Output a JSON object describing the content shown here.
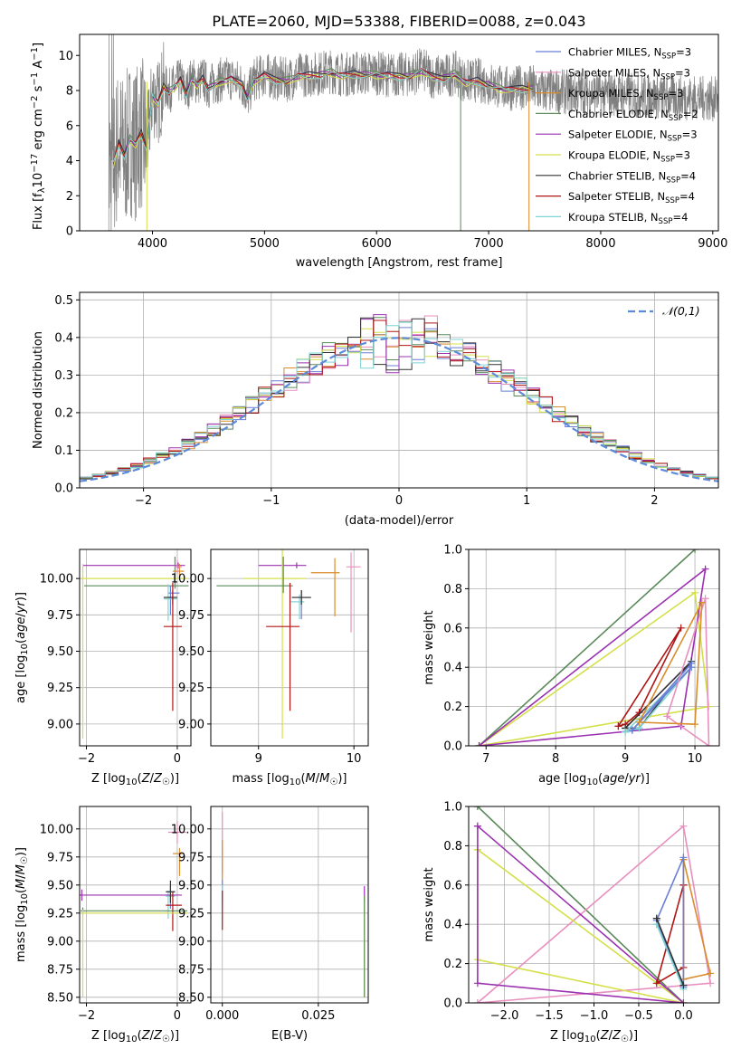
{
  "title": "PLATE=2060, MJD=53388, FIBERID=0088, z=0.043",
  "colors": {
    "chab_miles": "#6b7fd7",
    "salp_miles": "#e88fbf",
    "krou_miles": "#d98c2b",
    "chab_elodie": "#5a8a5a",
    "salp_elodie": "#9b30b0",
    "krou_elodie": "#d4e04a",
    "chab_stelib": "#333333",
    "salp_stelib": "#b01515",
    "krou_stelib": "#7fd4d4",
    "data": "#808080",
    "gauss": "#5b8bd9"
  },
  "chart_data": [
    {
      "id": "spectrum",
      "type": "line",
      "xlabel": "wavelength [Angstrom, rest frame]",
      "ylabel": "Flux [f_λ 10^-17 erg cm^-2 s^-1 A^-1]",
      "xlim": [
        3350,
        9050
      ],
      "ylim": [
        0,
        11.2
      ],
      "xticks": [
        4000,
        5000,
        6000,
        7000,
        8000,
        9000
      ],
      "yticks": [
        0,
        2,
        4,
        6,
        8,
        10
      ],
      "legend_placement": "right",
      "legend": [
        {
          "model": "Chabrier MILES",
          "nssp": "3",
          "color_key": "chab_miles"
        },
        {
          "model": "Salpeter MILES",
          "nssp": "3",
          "color_key": "salp_miles"
        },
        {
          "model": "Kroupa MILES",
          "nssp": "3",
          "color_key": "krou_miles"
        },
        {
          "model": "Chabrier ELODIE",
          "nssp": "2",
          "color_key": "chab_elodie"
        },
        {
          "model": "Salpeter ELODIE",
          "nssp": "3",
          "color_key": "salp_elodie"
        },
        {
          "model": "Kroupa ELODIE",
          "nssp": "3",
          "color_key": "krou_elodie"
        },
        {
          "model": "Chabrier STELIB",
          "nssp": "4",
          "color_key": "chab_stelib"
        },
        {
          "model": "Salpeter STELIB",
          "nssp": "4",
          "color_key": "salp_stelib"
        },
        {
          "model": "Kroupa STELIB",
          "nssp": "4",
          "color_key": "krou_stelib"
        }
      ],
      "model_x": [
        3650,
        3700,
        3750,
        3800,
        3850,
        3900,
        3950,
        4000,
        4050,
        4100,
        4150,
        4200,
        4250,
        4300,
        4350,
        4400,
        4450,
        4500,
        4600,
        4700,
        4800,
        4850,
        4900,
        5000,
        5100,
        5200,
        5300,
        5400,
        5500,
        5600,
        5700,
        5800,
        5900,
        6000,
        6100,
        6200,
        6300,
        6400,
        6500,
        6600,
        6700,
        6800,
        6900,
        7000,
        7100,
        7200,
        7300,
        7400
      ],
      "model_y": [
        3.9,
        5.0,
        4.4,
        5.3,
        5.0,
        5.6,
        4.8,
        7.8,
        7.3,
        8.3,
        8.0,
        8.3,
        8.6,
        7.9,
        8.7,
        8.4,
        8.7,
        8.2,
        8.6,
        8.7,
        8.4,
        7.6,
        8.6,
        8.9,
        8.7,
        8.6,
        8.9,
        8.9,
        9.0,
        9.1,
        8.9,
        9.0,
        9.0,
        9.0,
        8.9,
        8.9,
        8.9,
        9.2,
        8.8,
        8.8,
        9.0,
        8.5,
        8.6,
        8.4,
        8.2,
        8.1,
        8.2,
        8.2
      ],
      "data_note_ranges": {
        "lines_x": [
          3400,
          9050
        ]
      }
    },
    {
      "id": "residuals",
      "type": "histogram",
      "xlabel": "(data-model)/error",
      "ylabel": "Normed distribution",
      "xlim": [
        -2.5,
        2.5
      ],
      "ylim": [
        0,
        0.52
      ],
      "xticks": [
        -2,
        -1,
        0,
        1,
        2
      ],
      "yticks": [
        0.0,
        0.1,
        0.2,
        0.3,
        0.4,
        0.5
      ],
      "legend": "𝒩(0,1)",
      "legend_placement": "top-right",
      "grid": true,
      "bin_width": 0.1,
      "bin_start": -2.5
    },
    {
      "id": "age_vs_Z",
      "type": "errorbar",
      "xlabel": "Z [log10(Z/Z☉)]",
      "ylabel": "age [log10(age/yr)]",
      "xlim": [
        -2.15,
        0.3
      ],
      "ylim": [
        8.85,
        10.2
      ],
      "xticks": [
        -2,
        0
      ],
      "yticks": [
        9.0,
        9.25,
        9.5,
        9.75,
        10.0
      ],
      "points": [
        {
          "k": "salp_elodie",
          "x": 0.02,
          "xe": [
            2.1,
            0.15
          ],
          "y": 10.09,
          "ye": [
            0.02,
            0.02
          ]
        },
        {
          "k": "krou_elodie",
          "x": -2.08,
          "xe": [
            0.05,
            2.3
          ],
          "y": 10.0,
          "ye": [
            1.1,
            0.1
          ]
        },
        {
          "k": "chab_elodie",
          "x": -0.05,
          "xe": [
            2.0,
            0.3
          ],
          "y": 9.95,
          "ye": [
            0.02,
            0.2
          ]
        },
        {
          "k": "krou_miles",
          "x": 0.05,
          "xe": [
            0.15,
            0.1
          ],
          "y": 10.05,
          "ye": [
            0.05,
            0.05
          ]
        },
        {
          "k": "salp_miles",
          "x": 0.0,
          "xe": [
            0.05,
            0.1
          ],
          "y": 10.08,
          "ye": [
            0.05,
            0.05
          ]
        },
        {
          "k": "chab_miles",
          "x": -0.15,
          "xe": [
            0.05,
            0.2
          ],
          "y": 9.9,
          "ye": [
            0.15,
            0.05
          ]
        },
        {
          "k": "krou_stelib",
          "x": -0.2,
          "xe": [
            0.1,
            0.2
          ],
          "y": 9.86,
          "ye": [
            0.15,
            0.1
          ]
        },
        {
          "k": "chab_stelib",
          "x": -0.1,
          "xe": [
            0.2,
            0.1
          ],
          "y": 9.87,
          "ye": [
            0.05,
            0.05
          ]
        },
        {
          "k": "salp_stelib",
          "x": -0.1,
          "xe": [
            0.2,
            0.2
          ],
          "y": 9.67,
          "ye": [
            0.58,
            0.3
          ]
        }
      ]
    },
    {
      "id": "age_vs_mass",
      "type": "errorbar",
      "xlabel": "mass [log10(M/M☉)]",
      "ylabel": "",
      "xlim": [
        8.5,
        10.15
      ],
      "ylim": [
        8.85,
        10.2
      ],
      "xticks": [
        9,
        10
      ],
      "yticks": [
        9.0,
        9.25,
        9.5,
        9.75,
        10.0
      ],
      "points": [
        {
          "k": "salp_elodie",
          "x": 9.4,
          "xe": [
            0.4,
            0.1
          ],
          "y": 10.09,
          "ye": [
            0.02,
            0.02
          ]
        },
        {
          "k": "krou_elodie",
          "x": 9.25,
          "xe": [
            0.4,
            0.25
          ],
          "y": 10.0,
          "ye": [
            1.1,
            0.2
          ]
        },
        {
          "k": "chab_elodie",
          "x": 9.26,
          "xe": [
            0.7,
            0.1
          ],
          "y": 9.95,
          "ye": [
            0.05,
            0.2
          ]
        },
        {
          "k": "krou_miles",
          "x": 9.8,
          "xe": [
            0.25,
            0.05
          ],
          "y": 10.04,
          "ye": [
            0.3,
            0.1
          ]
        },
        {
          "k": "salp_miles",
          "x": 9.97,
          "xe": [
            0.05,
            0.1
          ],
          "y": 10.08,
          "ye": [
            0.45,
            0.1
          ]
        },
        {
          "k": "chab_miles",
          "x": 9.45,
          "xe": [
            0.1,
            0.1
          ],
          "y": 9.87,
          "ye": [
            0.15,
            0.05
          ]
        },
        {
          "k": "krou_stelib",
          "x": 9.43,
          "xe": [
            0.1,
            0.05
          ],
          "y": 9.84,
          "ye": [
            0.12,
            0.05
          ]
        },
        {
          "k": "chab_stelib",
          "x": 9.45,
          "xe": [
            0.1,
            0.1
          ],
          "y": 9.87,
          "ye": [
            0.05,
            0.05
          ]
        },
        {
          "k": "salp_stelib",
          "x": 9.33,
          "xe": [
            0.25,
            0.1
          ],
          "y": 9.67,
          "ye": [
            0.58,
            0.3
          ]
        }
      ]
    },
    {
      "id": "massw_vs_age",
      "type": "line",
      "xlabel": "age [log10(age/yr)]",
      "ylabel": "mass weight",
      "xlim": [
        6.75,
        10.35
      ],
      "ylim": [
        0,
        1.0
      ],
      "xticks": [
        7,
        8,
        9,
        10
      ],
      "yticks": [
        0.0,
        0.2,
        0.4,
        0.6,
        0.8,
        1.0
      ],
      "grid": true,
      "series": [
        {
          "k": "chab_elodie",
          "x": [
            6.9,
            10.0,
            6.9
          ],
          "y": [
            0.0,
            1.0,
            0.0
          ]
        },
        {
          "k": "krou_elodie",
          "x": [
            6.9,
            10.0,
            10.2,
            6.9
          ],
          "y": [
            0.0,
            0.78,
            0.2,
            0.0
          ]
        },
        {
          "k": "salp_elodie",
          "x": [
            6.9,
            9.8,
            10.15,
            6.9
          ],
          "y": [
            0.0,
            0.1,
            0.9,
            0.0
          ]
        },
        {
          "k": "salp_stelib",
          "x": [
            8.9,
            9.0,
            9.2,
            9.8,
            8.9
          ],
          "y": [
            0.1,
            0.11,
            0.17,
            0.6,
            0.1
          ]
        },
        {
          "k": "chab_stelib",
          "x": [
            9.0,
            9.2,
            9.95,
            9.0
          ],
          "y": [
            0.09,
            0.09,
            0.43,
            0.09
          ]
        },
        {
          "k": "krou_stelib",
          "x": [
            9.0,
            9.2,
            9.95,
            9.0
          ],
          "y": [
            0.07,
            0.09,
            0.4,
            0.07
          ]
        },
        {
          "k": "chab_miles",
          "x": [
            9.1,
            9.95,
            9.95,
            9.1
          ],
          "y": [
            0.08,
            0.42,
            0.4,
            0.08
          ]
        },
        {
          "k": "salp_miles",
          "x": [
            9.6,
            10.15,
            10.2,
            9.6
          ],
          "y": [
            0.15,
            0.75,
            0.0,
            0.15
          ]
        },
        {
          "k": "krou_miles",
          "x": [
            9.2,
            10.0,
            10.1,
            9.2
          ],
          "y": [
            0.12,
            0.11,
            0.73,
            0.12
          ]
        }
      ]
    },
    {
      "id": "mass_vs_Z",
      "type": "errorbar",
      "xlabel": "Z [log10(Z/Z☉)]",
      "ylabel": "mass [log10(M/M☉)]",
      "xlim": [
        -2.15,
        0.3
      ],
      "ylim": [
        8.45,
        10.2
      ],
      "xticks": [
        -2,
        0
      ],
      "yticks": [
        8.5,
        8.75,
        9.0,
        9.25,
        9.5,
        9.75,
        10.0
      ],
      "points": [
        {
          "k": "salp_miles",
          "x": 0.0,
          "xe": [
            0.2,
            0.2
          ],
          "y": 9.97,
          "ye": [
            0.1,
            0.1
          ]
        },
        {
          "k": "krou_miles",
          "x": 0.05,
          "xe": [
            0.15,
            0.1
          ],
          "y": 9.78,
          "ye": [
            0.2,
            0.05
          ]
        },
        {
          "k": "chab_miles",
          "x": -0.15,
          "xe": [
            0.1,
            0.1
          ],
          "y": 9.44,
          "ye": [
            0.15,
            0.05
          ]
        },
        {
          "k": "krou_stelib",
          "x": -0.2,
          "xe": [
            0.05,
            0.15
          ],
          "y": 9.4,
          "ye": [
            0.2,
            0.05
          ]
        },
        {
          "k": "salp_elodie",
          "x": -2.1,
          "xe": [
            0.05,
            2.2
          ],
          "y": 9.41,
          "ye": [
            0.05,
            0.05
          ]
        },
        {
          "k": "salp_stelib",
          "x": -0.1,
          "xe": [
            0.15,
            0.2
          ],
          "y": 9.32,
          "ye": [
            0.23,
            0.12
          ]
        },
        {
          "k": "chab_stelib",
          "x": -0.15,
          "xe": [
            0.1,
            0.1
          ],
          "y": 9.44,
          "ye": [
            0.1,
            0.1
          ]
        },
        {
          "k": "chab_elodie",
          "x": -2.08,
          "xe": [
            0.05,
            2.3
          ],
          "y": 9.27,
          "ye": [
            0.03,
            0.03
          ]
        },
        {
          "k": "krou_elodie",
          "x": -2.08,
          "xe": [
            0.05,
            2.3
          ],
          "y": 9.25,
          "ye": [
            0.75,
            0.03
          ]
        }
      ]
    },
    {
      "id": "mass_vs_ebv",
      "type": "errorbar",
      "xlabel": "E(B-V)",
      "ylabel": "",
      "xlim": [
        -0.003,
        0.038
      ],
      "ylim": [
        8.45,
        10.2
      ],
      "xticks": [
        0.0,
        0.025
      ],
      "yticks": [
        8.5,
        8.75,
        9.0,
        9.25,
        9.5,
        9.75,
        10.0
      ],
      "points": [
        {
          "k": "salp_miles",
          "x": 0.0,
          "xe": [
            0,
            0
          ],
          "y": 9.9,
          "ye": [
            0.3,
            0.25
          ]
        },
        {
          "k": "krou_miles",
          "x": 0.0,
          "xe": [
            0,
            0
          ],
          "y": 9.75,
          "ye": [
            0.2,
            0.15
          ]
        },
        {
          "k": "chab_miles",
          "x": 0.0,
          "xe": [
            0,
            0
          ],
          "y": 9.45,
          "ye": [
            0.1,
            0.1
          ]
        },
        {
          "k": "krou_stelib",
          "x": 0.0,
          "xe": [
            0,
            0
          ],
          "y": 9.4,
          "ye": [
            0.1,
            0.1
          ]
        },
        {
          "k": "salp_stelib",
          "x": 0.0,
          "xe": [
            0,
            0
          ],
          "y": 9.3,
          "ye": [
            0.2,
            0.15
          ]
        },
        {
          "k": "salp_elodie",
          "x": 0.037,
          "xe": [
            0,
            0
          ],
          "y": 9.42,
          "ye": [
            0.05,
            0.07
          ]
        },
        {
          "k": "krou_elodie",
          "x": 0.037,
          "xe": [
            0,
            0
          ],
          "y": 9.0,
          "ye": [
            0.5,
            0.4
          ]
        },
        {
          "k": "chab_elodie",
          "x": 0.037,
          "xe": [
            0,
            0
          ],
          "y": 9.0,
          "ye": [
            0.5,
            0.4
          ]
        }
      ]
    },
    {
      "id": "massw_vs_Z",
      "type": "line",
      "xlabel": "Z [log10(Z/Z☉)]",
      "ylabel": "mass weight",
      "xlim": [
        -2.4,
        0.4
      ],
      "ylim": [
        0,
        1.0
      ],
      "xticks": [
        -2.0,
        -1.5,
        -1.0,
        -0.5,
        0.0
      ],
      "yticks": [
        0.0,
        0.2,
        0.4,
        0.6,
        0.8,
        1.0
      ],
      "grid": true,
      "series": [
        {
          "k": "chab_elodie",
          "x": [
            -2.3,
            0.0,
            -2.3
          ],
          "y": [
            1.0,
            0.0,
            1.0
          ]
        },
        {
          "k": "salp_miles",
          "x": [
            -2.3,
            0.0,
            0.3,
            -2.3
          ],
          "y": [
            0.0,
            0.9,
            0.1,
            0.0
          ]
        },
        {
          "k": "krou_elodie",
          "x": [
            -2.3,
            -2.3,
            0.0,
            -2.3
          ],
          "y": [
            0.78,
            0.22,
            0.0,
            0.78
          ]
        },
        {
          "k": "salp_elodie",
          "x": [
            -2.3,
            -2.3,
            0.0,
            -2.3
          ],
          "y": [
            0.9,
            0.1,
            0.0,
            0.9
          ]
        },
        {
          "k": "salp_stelib",
          "x": [
            0.0,
            0.0,
            -0.3,
            0.0
          ],
          "y": [
            0.6,
            0.18,
            0.1,
            0.6
          ]
        },
        {
          "k": "krou_miles",
          "x": [
            0.0,
            0.0,
            0.3,
            0.0
          ],
          "y": [
            0.73,
            0.12,
            0.15,
            0.73
          ]
        },
        {
          "k": "chab_miles",
          "x": [
            0.0,
            0.0,
            -0.3,
            0.0
          ],
          "y": [
            0.74,
            0.08,
            0.42,
            0.74
          ]
        },
        {
          "k": "krou_stelib",
          "x": [
            -0.3,
            0.0,
            -0.3
          ],
          "y": [
            0.4,
            0.07,
            0.4
          ]
        },
        {
          "k": "chab_stelib",
          "x": [
            -0.3,
            0.0,
            -0.3
          ],
          "y": [
            0.43,
            0.09,
            0.43
          ]
        }
      ]
    }
  ]
}
